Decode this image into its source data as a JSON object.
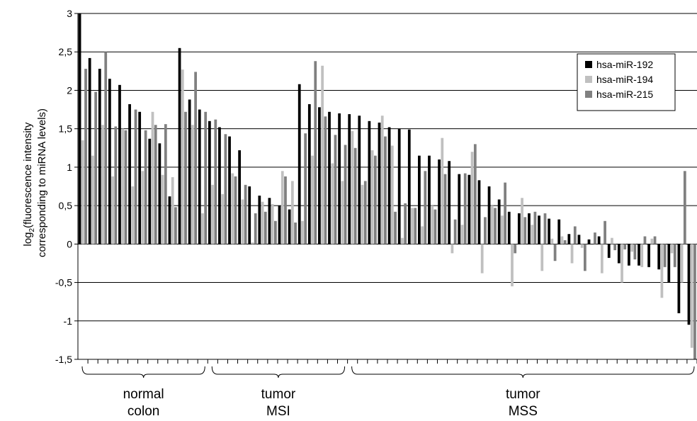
{
  "chart_data": {
    "type": "bar",
    "ylabel_prefix": "log",
    "ylabel_subscript": "2",
    "ylabel_line1_rest": "(fluorescence intensity",
    "ylabel_line2": "corresponding to miRNA levels)",
    "ylim": [
      -1.5,
      3
    ],
    "yticks": [
      "-1,5",
      "-1",
      "-0,5",
      "0",
      "0,5",
      "1",
      "1,5",
      "2",
      "2,5",
      "3"
    ],
    "ytick_values": [
      -1.5,
      -1,
      -0.5,
      0,
      0.5,
      1,
      1.5,
      2,
      2.5,
      3
    ],
    "grid": true,
    "legend_position": "top-right",
    "colors": {
      "hsa-miR-192": "#000000",
      "hsa-miR-194": "#c0c0c0",
      "hsa-miR-215": "#808080"
    },
    "groups": [
      {
        "line1": "normal",
        "line2": "colon",
        "start": 0,
        "end": 12
      },
      {
        "line1": "tumor",
        "line2": "MSI",
        "start": 13,
        "end": 26
      },
      {
        "line1": "tumor",
        "line2": "MSS",
        "start": 27,
        "end": 72
      }
    ],
    "series": [
      {
        "name": "hsa-miR-192",
        "values": [
          3.0,
          2.42,
          2.28,
          2.15,
          2.07,
          1.82,
          1.72,
          1.37,
          1.31,
          0.62,
          2.55,
          1.88,
          1.75,
          1.6,
          1.52,
          1.4,
          1.22,
          0.75,
          0.63,
          0.6,
          0.5,
          0.45,
          2.08,
          1.82,
          1.78,
          1.72,
          1.7,
          1.69,
          1.67,
          1.6,
          1.58,
          1.52,
          1.5,
          1.49,
          1.15,
          1.15,
          1.1,
          1.08,
          0.91,
          0.9,
          0.83,
          0.75,
          0.58,
          0.42,
          0.4,
          0.4,
          0.37,
          0.33,
          0.32,
          0.13,
          0.12,
          0.06,
          0.1,
          -0.18,
          -0.25,
          -0.28,
          -0.28,
          -0.3,
          -0.33,
          -0.5,
          -0.9,
          -1.05
        ]
      },
      {
        "name": "hsa-miR-194",
        "values": [
          1.35,
          1.15,
          1.55,
          0.88,
          1.5,
          0.75,
          0.95,
          1.72,
          0.9,
          0.87,
          2.27,
          1.55,
          0.4,
          0.77,
          0.65,
          0.92,
          0.58,
          0.02,
          0.55,
          0.52,
          0.95,
          0.82,
          0.3,
          1.15,
          2.32,
          1.05,
          0.82,
          1.47,
          0.77,
          1.22,
          1.67,
          1.28,
          0.08,
          0.47,
          0.23,
          0.5,
          1.38,
          -0.12,
          0.25,
          1.2,
          -0.38,
          0.5,
          0.37,
          -0.55,
          0.6,
          0.25,
          -0.35,
          0.07,
          0.1,
          -0.25,
          -0.05,
          0.0,
          -0.38,
          0.08,
          -0.5,
          -0.1,
          -0.3,
          0.07,
          -0.7,
          -0.12,
          -0.5,
          -1.35
        ]
      },
      {
        "name": "hsa-miR-215",
        "values": [
          2.28,
          1.98,
          2.5,
          1.53,
          1.48,
          1.75,
          1.48,
          1.55,
          1.56,
          0.48,
          1.72,
          2.24,
          1.72,
          1.62,
          1.43,
          0.88,
          0.77,
          0.4,
          0.42,
          0.3,
          0.88,
          0.28,
          1.44,
          2.38,
          1.66,
          1.42,
          1.29,
          1.25,
          0.82,
          1.15,
          1.4,
          0.42,
          0.53,
          0.47,
          0.95,
          0.45,
          0.91,
          0.32,
          0.92,
          1.3,
          0.35,
          0.47,
          0.8,
          -0.12,
          0.35,
          0.42,
          0.4,
          -0.22,
          0.05,
          0.23,
          -0.35,
          0.15,
          0.3,
          -0.08,
          -0.07,
          -0.2,
          0.1,
          0.1,
          -0.3,
          -0.3,
          0.95,
          -1.5
        ]
      }
    ]
  }
}
